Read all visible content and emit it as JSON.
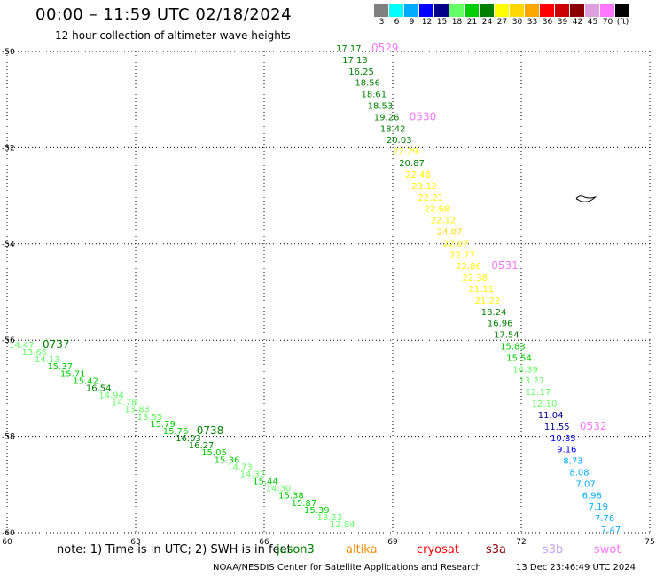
{
  "header": {
    "title": "00:00 – 11:59 UTC 02/18/2024",
    "subtitle": "12 hour collection of altimeter wave heights"
  },
  "legend": {
    "colors": [
      "#808080",
      "#00ffff",
      "#00aaff",
      "#0000ff",
      "#00008b",
      "#66ff66",
      "#00cc00",
      "#008000",
      "#ffff00",
      "#ffd700",
      "#ffa500",
      "#ff0000",
      "#cc0000",
      "#8b0000",
      "#dda0dd",
      "#ff77ff",
      "#000000"
    ],
    "labels": [
      "3",
      "6",
      "9",
      "12",
      "15",
      "18",
      "21",
      "24",
      "27",
      "30",
      "33",
      "36",
      "39",
      "42",
      "45",
      "70",
      "(ft)"
    ]
  },
  "note": {
    "text": "note: 1) Time is in UTC; 2) SWH is in feet",
    "missions": [
      {
        "name": "jason3",
        "color": "#008000"
      },
      {
        "name": "altika",
        "color": "#ff8c00"
      },
      {
        "name": "cryosat",
        "color": "#ff0000"
      },
      {
        "name": "s3a",
        "color": "#8b0000"
      },
      {
        "name": "s3b",
        "color": "#c0a0ff"
      },
      {
        "name": "swot",
        "color": "#ff77ff"
      }
    ]
  },
  "footer": {
    "credit": "NOAA/NESDIS Center for Satellite Applications and Research",
    "generated": "13 Dec 23:46:49 UTC 2024"
  },
  "axes": {
    "x_ticks": [
      "60",
      "63",
      "66",
      "69",
      "72",
      "75"
    ],
    "y_ticks": [
      "-50",
      "-52",
      "-54",
      "-56",
      "-58",
      "-60"
    ]
  },
  "map_data": {
    "lon_range": [
      60,
      75
    ],
    "lat_range": [
      -60,
      -50
    ],
    "track_east": [
      {
        "v": "17.17",
        "c": "#008000"
      },
      {
        "v": "17.13",
        "c": "#008000"
      },
      {
        "v": "16.25",
        "c": "#008000"
      },
      {
        "v": "18.56",
        "c": "#008000"
      },
      {
        "v": "18.61",
        "c": "#008000"
      },
      {
        "v": "18.53",
        "c": "#008000"
      },
      {
        "v": "19.26",
        "c": "#008000"
      },
      {
        "v": "18.42",
        "c": "#008000"
      },
      {
        "v": "20.03",
        "c": "#008000"
      },
      {
        "v": "22.29",
        "c": "#ffff00"
      },
      {
        "v": "20.87",
        "c": "#008000"
      },
      {
        "v": "22.46",
        "c": "#ffff00"
      },
      {
        "v": "23.12",
        "c": "#ffff00"
      },
      {
        "v": "22.21",
        "c": "#ffff00"
      },
      {
        "v": "22.68",
        "c": "#ffff00"
      },
      {
        "v": "22.12",
        "c": "#ffff00"
      },
      {
        "v": "24.07",
        "c": "#ffd700"
      },
      {
        "v": "22.07",
        "c": "#ffff00"
      },
      {
        "v": "22.77",
        "c": "#ffff00"
      },
      {
        "v": "22.86",
        "c": "#ffff00"
      },
      {
        "v": "22.38",
        "c": "#ffff00"
      },
      {
        "v": "21.11",
        "c": "#ffff00"
      },
      {
        "v": "21.22",
        "c": "#ffff00"
      },
      {
        "v": "18.24",
        "c": "#008000"
      },
      {
        "v": "16.96",
        "c": "#008000"
      },
      {
        "v": "17.54",
        "c": "#008000"
      },
      {
        "v": "15.83",
        "c": "#00cc00"
      },
      {
        "v": "15.54",
        "c": "#00cc00"
      },
      {
        "v": "14.39",
        "c": "#66ff66"
      },
      {
        "v": "13.27",
        "c": "#66ff66"
      },
      {
        "v": "12.17",
        "c": "#66ff66"
      },
      {
        "v": "12.10",
        "c": "#66ff66"
      },
      {
        "v": "11.04",
        "c": "#00008b"
      },
      {
        "v": "11.55",
        "c": "#00008b"
      },
      {
        "v": "10.85",
        "c": "#0000ff"
      },
      {
        "v": "9.16",
        "c": "#0000ff"
      },
      {
        "v": "8.73",
        "c": "#00aaff"
      },
      {
        "v": "8.08",
        "c": "#00aaff"
      },
      {
        "v": "7.07",
        "c": "#00aaff"
      },
      {
        "v": "6.98",
        "c": "#00aaff"
      },
      {
        "v": "7.19",
        "c": "#00aaff"
      },
      {
        "v": "7.76",
        "c": "#00aaff"
      },
      {
        "v": "7.47",
        "c": "#00aaff"
      }
    ],
    "track_east_times": [
      {
        "v": "0529",
        "c": "#ff77ff",
        "index": 0
      },
      {
        "v": "0530",
        "c": "#ff77ff",
        "index": 6
      },
      {
        "v": "0531",
        "c": "#ff77ff",
        "index": 19
      },
      {
        "v": "0532",
        "c": "#ff77ff",
        "index": 33
      }
    ],
    "track_west": [
      {
        "v": "14.47",
        "c": "#66ff66"
      },
      {
        "v": "13.66",
        "c": "#66ff66"
      },
      {
        "v": "14.13",
        "c": "#66ff66"
      },
      {
        "v": "15.37",
        "c": "#00cc00"
      },
      {
        "v": "15.71",
        "c": "#00cc00"
      },
      {
        "v": "15.42",
        "c": "#00cc00"
      },
      {
        "v": "16.54",
        "c": "#008000"
      },
      {
        "v": "14.94",
        "c": "#66ff66"
      },
      {
        "v": "14.78",
        "c": "#66ff66"
      },
      {
        "v": "13.83",
        "c": "#66ff66"
      },
      {
        "v": "13.55",
        "c": "#66ff66"
      },
      {
        "v": "15.79",
        "c": "#00cc00"
      },
      {
        "v": "15.76",
        "c": "#00cc00"
      },
      {
        "v": "16.03",
        "c": "#008000"
      },
      {
        "v": "16.27",
        "c": "#008000"
      },
      {
        "v": "15.05",
        "c": "#00cc00"
      },
      {
        "v": "15.36",
        "c": "#00cc00"
      },
      {
        "v": "14.73",
        "c": "#66ff66"
      },
      {
        "v": "14.32",
        "c": "#66ff66"
      },
      {
        "v": "15.44",
        "c": "#00cc00"
      },
      {
        "v": "14.30",
        "c": "#66ff66"
      },
      {
        "v": "15.38",
        "c": "#00cc00"
      },
      {
        "v": "15.87",
        "c": "#00cc00"
      },
      {
        "v": "15.39",
        "c": "#00cc00"
      },
      {
        "v": "13.23",
        "c": "#66ff66"
      },
      {
        "v": "12.84",
        "c": "#66ff66"
      }
    ],
    "track_west_times": [
      {
        "v": "0737",
        "c": "#008000",
        "index": 0
      },
      {
        "v": "0738",
        "c": "#008000",
        "index": 12
      }
    ]
  }
}
